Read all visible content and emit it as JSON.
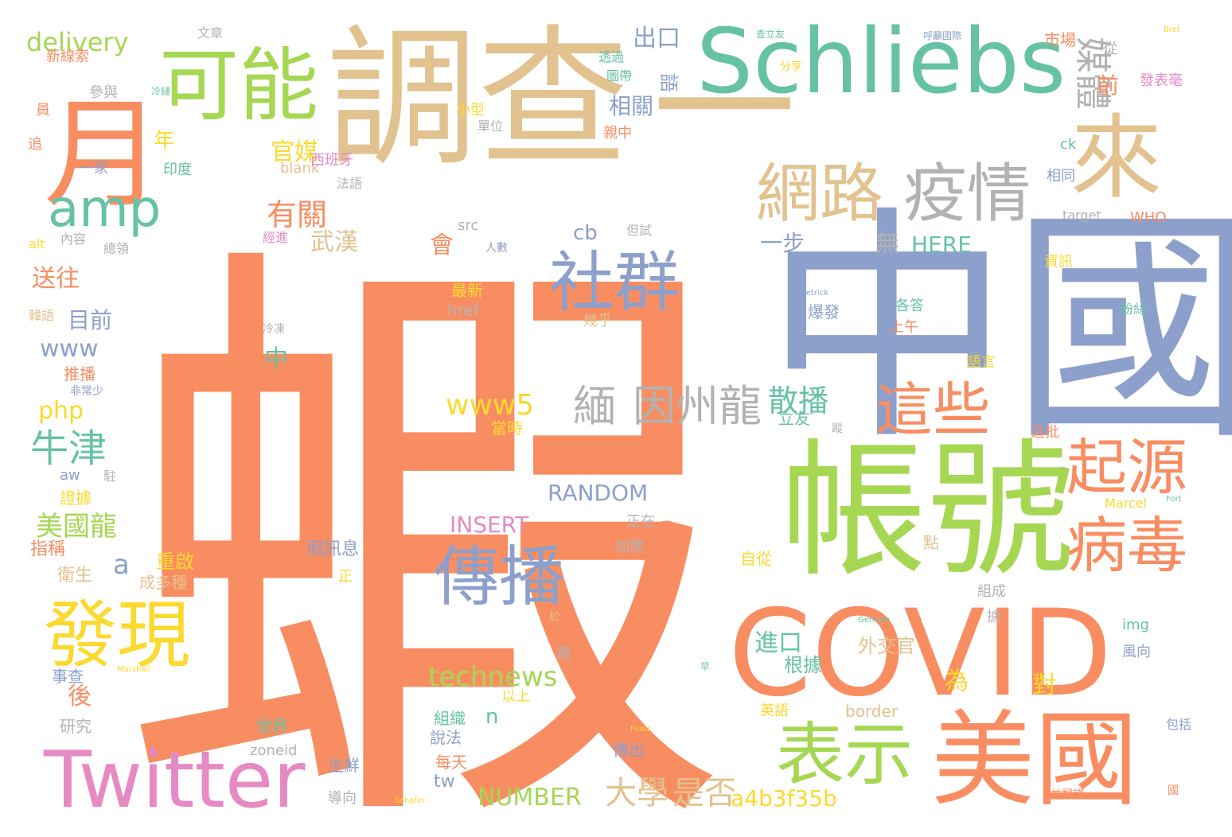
{
  "colors": {
    "orange": "#F98D62",
    "blue": "#8D9FCB",
    "green": "#A6D753",
    "tan": "#E2C28F",
    "teal": "#66C2A5",
    "pink": "#E68AC3",
    "yellow": "#FBD92F",
    "gray": "#B2B2B2",
    "background": "#FFFFFF"
  },
  "words": [
    {
      "text": "蝦",
      "color": "orange",
      "weight": 1.0
    },
    {
      "text": "中國",
      "color": "blue",
      "weight": 0.6
    },
    {
      "text": "調查",
      "color": "tan",
      "weight": 0.45
    },
    {
      "text": "一",
      "color": "tan",
      "weight": 0.45
    },
    {
      "text": "Schliebs",
      "color": "teal",
      "weight": 0.4
    },
    {
      "text": "帳號",
      "color": "green",
      "weight": 0.45
    },
    {
      "text": "COVID",
      "color": "orange",
      "weight": 0.45
    },
    {
      "text": "美國",
      "color": "orange",
      "weight": 0.4
    },
    {
      "text": "月",
      "color": "orange",
      "weight": 0.35
    },
    {
      "text": "來",
      "color": "tan",
      "weight": 0.35
    },
    {
      "text": "可能",
      "color": "green",
      "weight": 0.3
    },
    {
      "text": "Twitter",
      "color": "pink",
      "weight": 0.3
    },
    {
      "text": "發現",
      "color": "yellow",
      "weight": 0.3
    },
    {
      "text": "表示",
      "color": "green",
      "weight": 0.3
    },
    {
      "text": "社群",
      "color": "blue",
      "weight": 0.28
    },
    {
      "text": "傳播",
      "color": "blue",
      "weight": 0.28
    },
    {
      "text": "網路",
      "color": "tan",
      "weight": 0.26
    },
    {
      "text": "疫情",
      "color": "gray",
      "weight": 0.26
    },
    {
      "text": "amp",
      "color": "teal",
      "weight": 0.26
    },
    {
      "text": "起源",
      "color": "orange",
      "weight": 0.26
    },
    {
      "text": "病毒",
      "color": "orange",
      "weight": 0.26
    },
    {
      "text": "這些",
      "color": "orange",
      "weight": 0.26
    },
    {
      "text": "緬",
      "color": "gray",
      "weight": 0.2
    },
    {
      "text": "因州龍",
      "color": "gray",
      "weight": 0.2
    },
    {
      "text": "媒體",
      "color": "gray",
      "weight": 0.14
    },
    {
      "text": "散播",
      "color": "teal",
      "weight": 0.14
    },
    {
      "text": "www5",
      "color": "yellow",
      "weight": 0.14
    },
    {
      "text": "technews",
      "color": "green",
      "weight": 0.12
    },
    {
      "text": "RANDOM",
      "color": "blue",
      "weight": 0.12
    },
    {
      "text": "INSERT",
      "color": "pink",
      "weight": 0.12
    },
    {
      "text": "NUMBER",
      "color": "green",
      "weight": 0.11
    },
    {
      "text": "大學",
      "color": "tan",
      "weight": 0.12
    },
    {
      "text": "是否",
      "color": "tan",
      "weight": 0.12
    },
    {
      "text": "a4b3f35b",
      "color": "yellow",
      "weight": 0.12
    },
    {
      "text": "牛津",
      "color": "teal",
      "weight": 0.13
    },
    {
      "text": "美國龍",
      "color": "green",
      "weight": 0.11
    },
    {
      "text": "delivery",
      "color": "green",
      "weight": 0.12
    },
    {
      "text": "www",
      "color": "blue",
      "weight": 0.11
    },
    {
      "text": "php",
      "color": "yellow",
      "weight": 0.11
    },
    {
      "text": "有關",
      "color": "orange",
      "weight": 0.12
    },
    {
      "text": "官媒",
      "color": "yellow",
      "weight": 0.11
    },
    {
      "text": "武漢",
      "color": "tan",
      "weight": 0.11
    },
    {
      "text": "出口",
      "color": "blue",
      "weight": 0.1
    },
    {
      "text": "相關",
      "color": "blue",
      "weight": 0.1
    },
    {
      "text": "一步",
      "color": "blue",
      "weight": 0.1
    },
    {
      "text": "無",
      "color": "gray",
      "weight": 0.1
    },
    {
      "text": "HERE",
      "color": "teal",
      "weight": 0.1
    },
    {
      "text": "進口",
      "color": "teal",
      "weight": 0.1
    },
    {
      "text": "外交官",
      "color": "tan",
      "weight": 0.08
    },
    {
      "text": "根據",
      "color": "teal",
      "weight": 0.08
    },
    {
      "text": "為",
      "color": "yellow",
      "weight": 0.09
    },
    {
      "text": "對",
      "color": "yellow",
      "weight": 0.09
    },
    {
      "text": "後",
      "color": "orange",
      "weight": 0.09
    },
    {
      "text": "會",
      "color": "orange",
      "weight": 0.09
    },
    {
      "text": "目前",
      "color": "blue",
      "weight": 0.09
    },
    {
      "text": "送往",
      "color": "orange",
      "weight": 0.09
    },
    {
      "text": "年",
      "color": "yellow",
      "weight": 0.08
    },
    {
      "text": "a",
      "color": "blue",
      "weight": 0.09
    },
    {
      "text": "n",
      "color": "teal",
      "weight": 0.08
    },
    {
      "text": "cb",
      "color": "blue",
      "weight": 0.08
    },
    {
      "text": "tw",
      "color": "blue",
      "weight": 0.08
    },
    {
      "text": "前",
      "color": "orange",
      "weight": 0.08
    },
    {
      "text": "語",
      "color": "blue",
      "weight": 0.08
    },
    {
      "text": "市場",
      "color": "orange",
      "weight": 0.06
    },
    {
      "text": "資訊",
      "color": "yellow",
      "weight": 0.06
    },
    {
      "text": "中",
      "color": "teal",
      "weight": 0.07
    },
    {
      "text": "border",
      "color": "tan",
      "weight": 0.06
    },
    {
      "text": "img",
      "color": "teal",
      "weight": 0.06
    },
    {
      "text": "WHO",
      "color": "orange",
      "weight": 0.05
    },
    {
      "text": "target",
      "color": "gray",
      "weight": 0.05
    },
    {
      "text": "ck",
      "color": "teal",
      "weight": 0.05
    },
    {
      "text": "相同",
      "color": "blue",
      "weight": 0.05
    },
    {
      "text": "立友",
      "color": "teal",
      "weight": 0.05
    },
    {
      "text": "src",
      "color": "gray",
      "weight": 0.05
    },
    {
      "text": "href",
      "color": "gray",
      "weight": 0.05
    },
    {
      "text": "blank",
      "color": "tan",
      "weight": 0.05
    },
    {
      "text": "zoneid",
      "color": "gray",
      "weight": 0.05
    },
    {
      "text": "aw",
      "color": "blue",
      "weight": 0.05
    },
    {
      "text": "alt",
      "color": "yellow",
      "weight": 0.05
    },
    {
      "text": "Marcel",
      "color": "yellow",
      "weight": 0.04
    },
    {
      "text": "正在",
      "color": "gray",
      "weight": 0.05
    },
    {
      "text": "加爾",
      "color": "gray",
      "weight": 0.05
    },
    {
      "text": "自從",
      "color": "yellow",
      "weight": 0.05
    },
    {
      "text": "點",
      "color": "tan",
      "weight": 0.05
    },
    {
      "text": "假訊息",
      "color": "blue",
      "weight": 0.05
    },
    {
      "text": "重啟",
      "color": "yellow",
      "weight": 0.05
    },
    {
      "text": "衛生",
      "color": "tan",
      "weight": 0.05
    },
    {
      "text": "指稱",
      "color": "orange",
      "weight": 0.05
    },
    {
      "text": "成多種",
      "color": "tan",
      "weight": 0.05
    },
    {
      "text": "最新",
      "color": "yellow",
      "weight": 0.05
    },
    {
      "text": "世界",
      "color": "teal",
      "weight": 0.05
    },
    {
      "text": "組織",
      "color": "teal",
      "weight": 0.05
    },
    {
      "text": "說法",
      "color": "blue",
      "weight": 0.05
    },
    {
      "text": "每天",
      "color": "orange",
      "weight": 0.05
    },
    {
      "text": "傳出",
      "color": "blue",
      "weight": 0.05
    },
    {
      "text": "生鮮",
      "color": "blue",
      "weight": 0.05
    },
    {
      "text": "導向",
      "color": "gray",
      "weight": 0.05
    },
    {
      "text": "以上",
      "color": "yellow",
      "weight": 0.05
    },
    {
      "text": "試圖",
      "color": "orange",
      "weight": 0.05
    },
    {
      "text": "當時",
      "color": "yellow",
      "weight": 0.05
    },
    {
      "text": "英語",
      "color": "yellow",
      "weight": 0.05
    },
    {
      "text": "研究",
      "color": "gray",
      "weight": 0.05
    },
    {
      "text": "事查",
      "color": "blue",
      "weight": 0.05
    },
    {
      "text": "證據",
      "color": "yellow",
      "weight": 0.05
    },
    {
      "text": "推播",
      "color": "orange",
      "weight": 0.05
    },
    {
      "text": "韓語",
      "color": "tan",
      "weight": 0.04
    },
    {
      "text": "總領",
      "color": "gray",
      "weight": 0.04
    },
    {
      "text": "內容",
      "color": "gray",
      "weight": 0.04
    },
    {
      "text": "印度",
      "color": "teal",
      "weight": 0.04
    },
    {
      "text": "一家",
      "color": "blue",
      "weight": 0.04
    },
    {
      "text": "法語",
      "color": "gray",
      "weight": 0.04
    },
    {
      "text": "西班牙",
      "color": "pink",
      "weight": 0.04
    },
    {
      "text": "經進",
      "color": "pink",
      "weight": 0.04
    },
    {
      "text": "新線索",
      "color": "orange",
      "weight": 0.04
    },
    {
      "text": "員",
      "color": "orange",
      "weight": 0.04
    },
    {
      "text": "追",
      "color": "orange",
      "weight": 0.04
    },
    {
      "text": "參與",
      "color": "gray",
      "weight": 0.04
    },
    {
      "text": "小型",
      "color": "yellow",
      "weight": 0.04
    },
    {
      "text": "單位",
      "color": "gray",
      "weight": 0.04
    },
    {
      "text": "親中",
      "color": "orange",
      "weight": 0.04
    },
    {
      "text": "圖帶",
      "color": "teal",
      "weight": 0.04
    },
    {
      "text": "透過",
      "color": "teal",
      "weight": 0.04
    },
    {
      "text": "分享",
      "color": "yellow",
      "weight": 0.04
    },
    {
      "text": "從",
      "color": "gray",
      "weight": 0.04
    },
    {
      "text": "發表毫",
      "color": "pink",
      "weight": 0.04
    },
    {
      "text": "人數",
      "color": "blue",
      "weight": 0.04
    },
    {
      "text": "但試",
      "color": "gray",
      "weight": 0.04
    },
    {
      "text": "幾乎",
      "color": "tan",
      "weight": 0.04
    },
    {
      "text": "冷凍",
      "color": "gray",
      "weight": 0.04
    },
    {
      "text": "爆發",
      "color": "blue",
      "weight": 0.05
    },
    {
      "text": "上午",
      "color": "orange",
      "weight": 0.04
    },
    {
      "text": "各答",
      "color": "teal",
      "weight": 0.04
    },
    {
      "text": "粉絲",
      "color": "teal",
      "weight": 0.04
    },
    {
      "text": "語言",
      "color": "yellow",
      "weight": 0.04
    },
    {
      "text": "這批",
      "color": "orange",
      "weight": 0.04
    },
    {
      "text": "蹤",
      "color": "gray",
      "weight": 0.04
    },
    {
      "text": "組成",
      "color": "gray",
      "weight": 0.04
    },
    {
      "text": "據",
      "color": "gray",
      "weight": 0.04
    },
    {
      "text": "風向",
      "color": "blue",
      "weight": 0.04
    },
    {
      "text": "包括",
      "color": "blue",
      "weight": 0.04
    },
    {
      "text": "並翻譯",
      "color": "orange",
      "weight": 0.04
    },
    {
      "text": "龍",
      "color": "gray",
      "weight": 0.04
    },
    {
      "text": "於",
      "color": "tan",
      "weight": 0.03
    },
    {
      "text": "早",
      "color": "teal",
      "weight": 0.03
    },
    {
      "text": "正",
      "color": "yellow",
      "weight": 0.04
    },
    {
      "text": "駐",
      "color": "gray",
      "weight": 0.04
    },
    {
      "text": "非常少",
      "color": "blue",
      "weight": 0.03
    },
    {
      "text": "文章",
      "color": "gray",
      "weight": 0.03
    },
    {
      "text": "查立友",
      "color": "teal",
      "weight": 0.03
    },
    {
      "text": "呼籲國際",
      "color": "blue",
      "weight": 0.03
    },
    {
      "text": "國",
      "color": "orange",
      "weight": 0.03
    },
    {
      "text": "冷鏈",
      "color": "teal",
      "weight": 0.03
    },
    {
      "text": "Marshall",
      "color": "yellow",
      "weight": 0.02
    },
    {
      "text": "Schafer",
      "color": "yellow",
      "weight": 0.02
    },
    {
      "text": "Fund",
      "color": "yellow",
      "weight": 0.02
    },
    {
      "text": "German",
      "color": "teal",
      "weight": 0.02
    },
    {
      "text": "Detrick",
      "color": "blue",
      "weight": 0.02
    },
    {
      "text": "Fort",
      "color": "teal",
      "weight": 0.02
    },
    {
      "text": "Bret",
      "color": "yellow",
      "weight": 0.02
    }
  ]
}
